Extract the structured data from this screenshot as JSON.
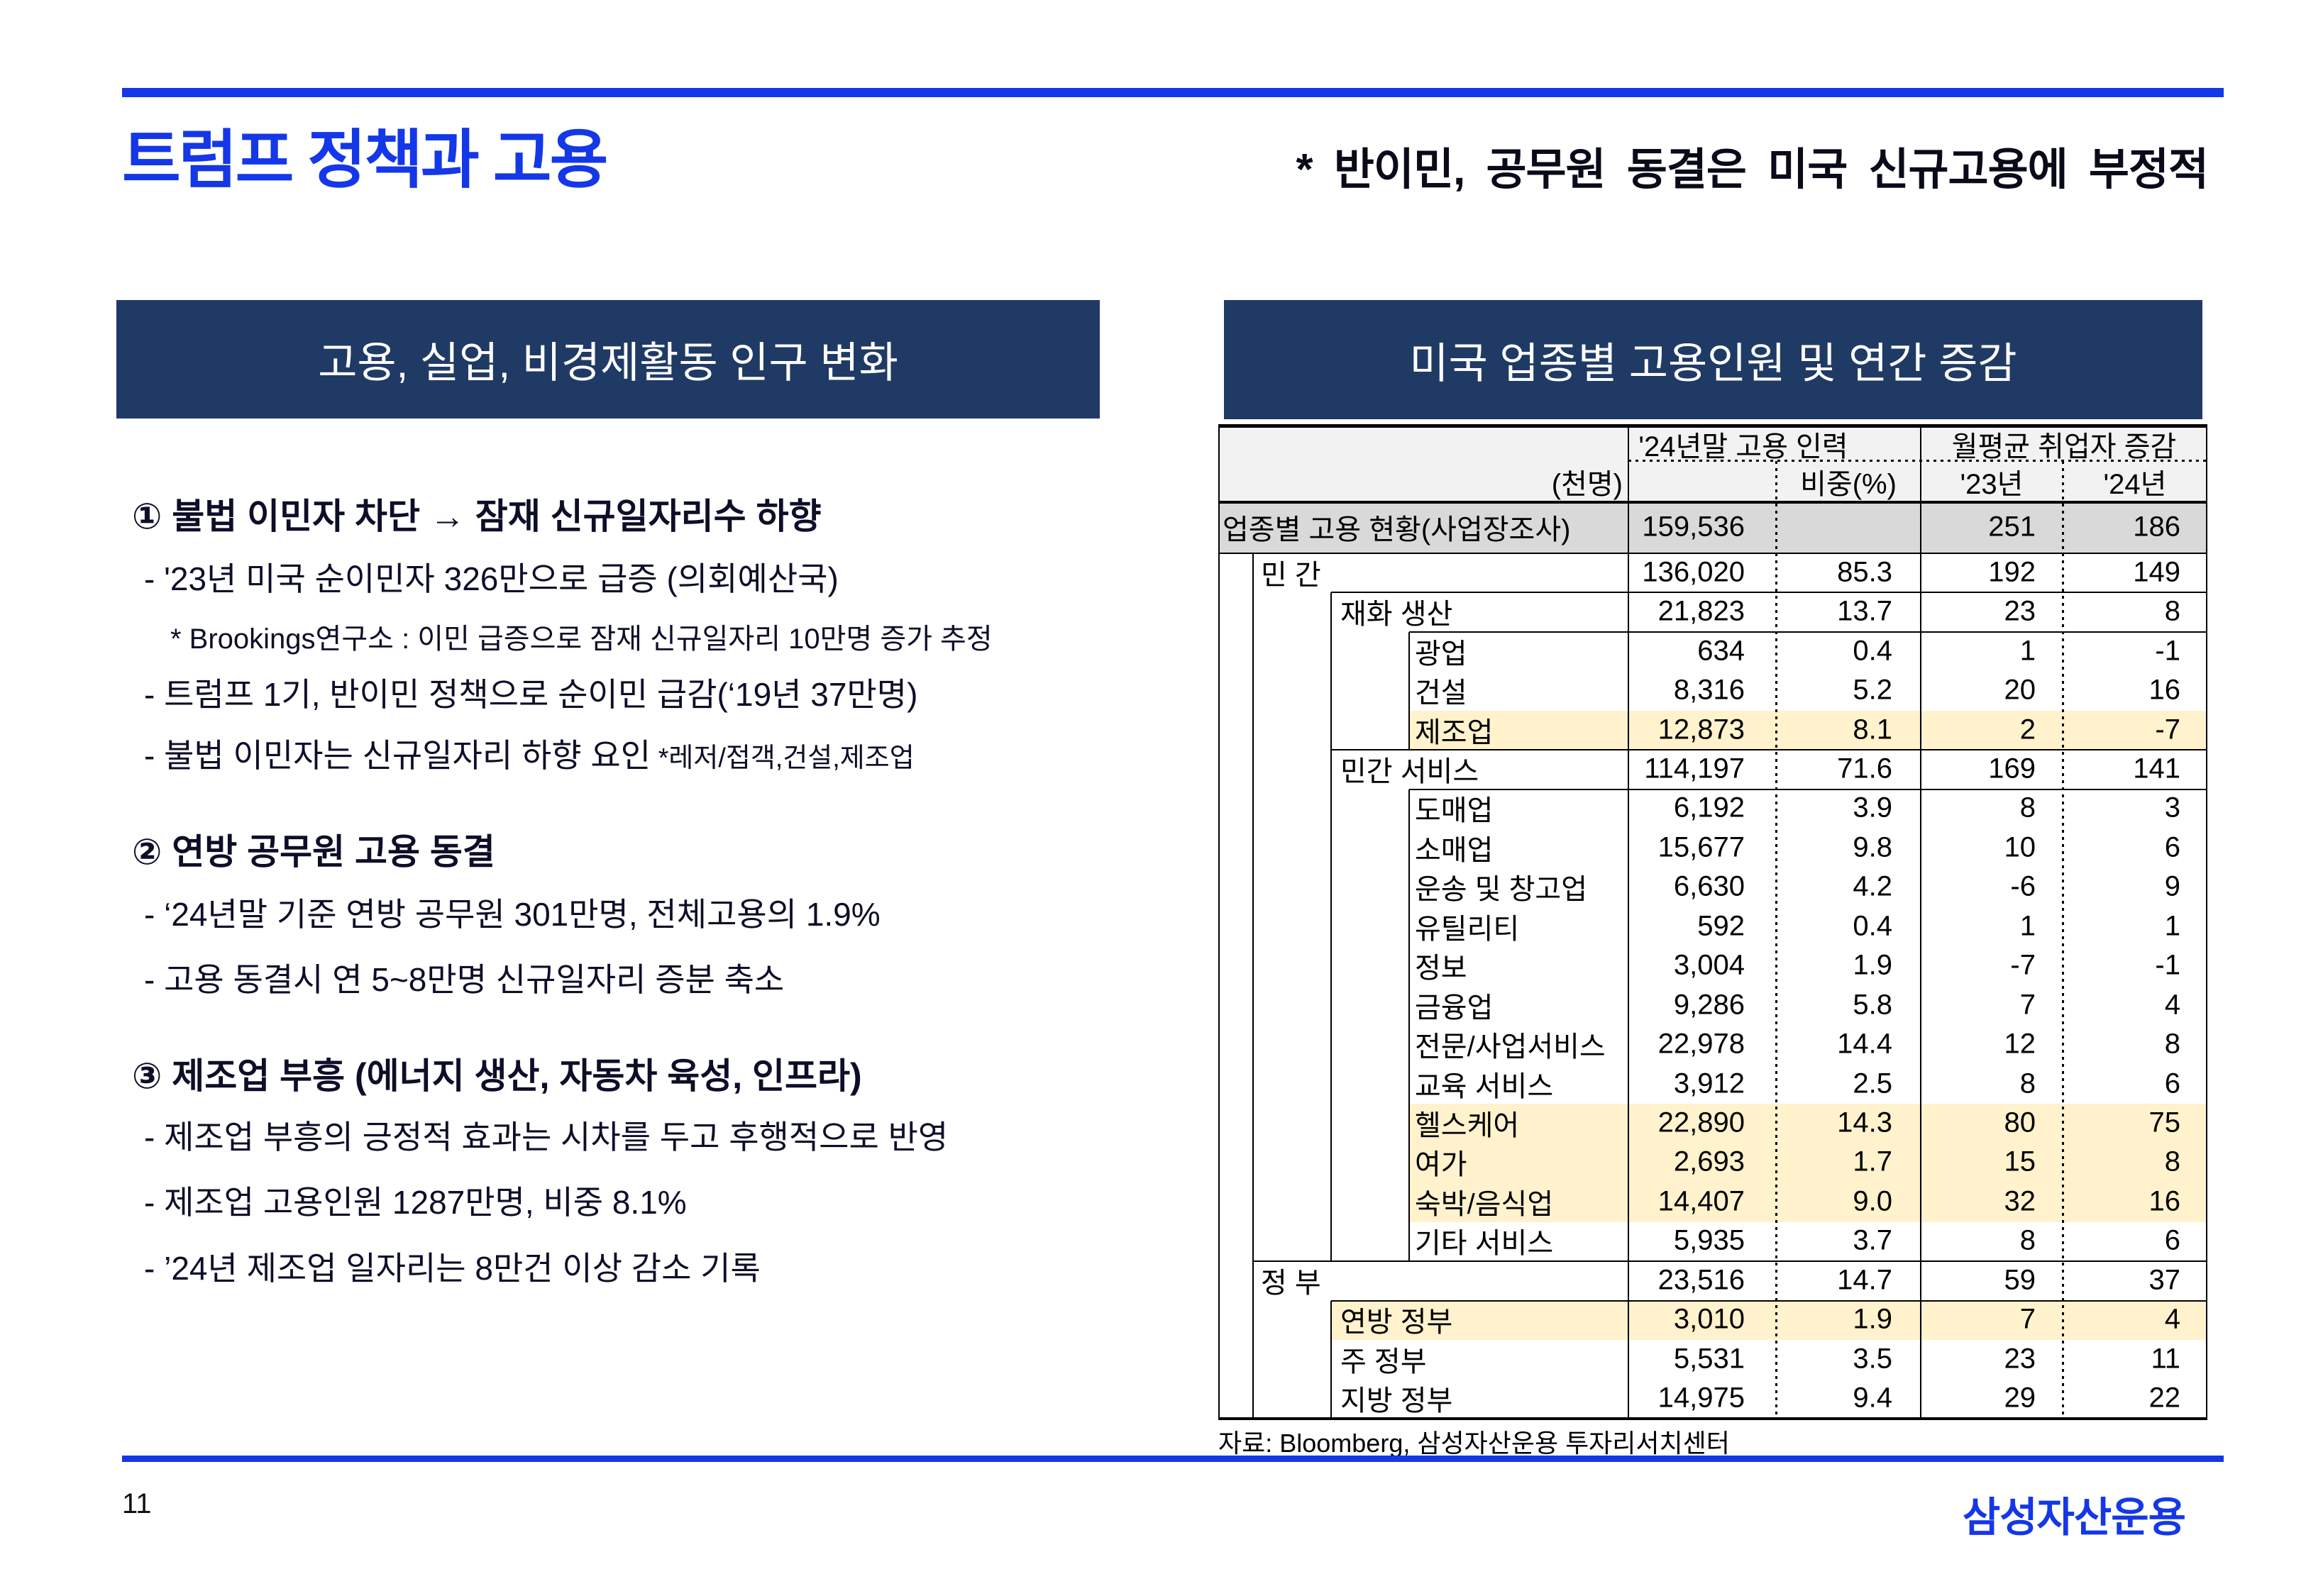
{
  "title": "트럼프 정책과 고용",
  "subtitle": "* 반이민, 공무원 동결은 미국 신규고용에 부정적",
  "page_number": "11",
  "logo": "삼성자산운용",
  "colors": {
    "accent_blue": "#1437E8",
    "navy": "#203A66",
    "highlight_yellow": "#FFF2CC",
    "row_gray": "#D9D9D9",
    "header_gray": "#F2F2F2"
  },
  "left_panel": {
    "header": "고용, 실업, 비경제활동 인구 변화",
    "sections": [
      {
        "heading": "① 불법 이민자 차단 → 잠재 신규일자리수 하향",
        "bullets": [
          {
            "text": "- '23년 미국 순이민자 326만으로 급증 (의회예산국)"
          },
          {
            "text": "* Brookings연구소 : 이민 급증으로 잠재 신규일자리 10만명 증가 추정",
            "style": "note"
          },
          {
            "text": "- 트럼프 1기, 반이민 정책으로 순이민 급감(‘19년 37만명)"
          },
          {
            "text": "- 불법 이민자는 신규일자리 하향 요인",
            "suffix": "  *레저/접객,건설,제조업"
          }
        ]
      },
      {
        "heading": "② 연방 공무원 고용 동결",
        "bullets": [
          {
            "text": "- ‘24년말 기준 연방 공무원 301만명, 전체고용의 1.9%"
          },
          {
            "text": "- 고용 동결시 연 5~8만명 신규일자리 증분 축소"
          }
        ]
      },
      {
        "heading": "③ 제조업 부흥 (에너지 생산, 자동차 육성, 인프라)",
        "bullets": [
          {
            "text": "- 제조업 부흥의 긍정적 효과는 시차를 두고 후행적으로 반영"
          },
          {
            "text": "- 제조업 고용인원 1287만명, 비중 8.1%"
          },
          {
            "text": "- ’24년 제조업 일자리는 8만건 이상 감소 기록"
          }
        ]
      }
    ]
  },
  "right_panel": {
    "header": "미국 업종별 고용인원 및 연간 증감",
    "source": "자료: Bloomberg, 삼성자산운용 투자리서치센터",
    "table": {
      "group_headers": [
        "'24년말 고용 인력",
        "월평균 취업자 증감"
      ],
      "unit_label": "(천명)",
      "sub_headers": [
        "비중(%)",
        "'23년",
        "'24년"
      ],
      "rows": [
        {
          "label": "업종별 고용 현황(사업장조사)",
          "level": 0,
          "values": [
            "159,536",
            "",
            "251",
            "186"
          ],
          "bg": "gray"
        },
        {
          "label": "민  간",
          "level": 1,
          "values": [
            "136,020",
            "85.3",
            "192",
            "149"
          ]
        },
        {
          "label": "재화 생산",
          "level": 2,
          "values": [
            "21,823",
            "13.7",
            "23",
            "8"
          ]
        },
        {
          "label": "광업",
          "level": 3,
          "values": [
            "634",
            "0.4",
            "1",
            "-1"
          ]
        },
        {
          "label": "건설",
          "level": 3,
          "values": [
            "8,316",
            "5.2",
            "20",
            "16"
          ]
        },
        {
          "label": "제조업",
          "level": 3,
          "values": [
            "12,873",
            "8.1",
            "2",
            "-7"
          ],
          "bg": "yellow"
        },
        {
          "label": "민간 서비스",
          "level": 2,
          "values": [
            "114,197",
            "71.6",
            "169",
            "141"
          ]
        },
        {
          "label": "도매업",
          "level": 3,
          "values": [
            "6,192",
            "3.9",
            "8",
            "3"
          ]
        },
        {
          "label": "소매업",
          "level": 3,
          "values": [
            "15,677",
            "9.8",
            "10",
            "6"
          ]
        },
        {
          "label": "운송 및 창고업",
          "level": 3,
          "values": [
            "6,630",
            "4.2",
            "-6",
            "9"
          ]
        },
        {
          "label": "유틸리티",
          "level": 3,
          "values": [
            "592",
            "0.4",
            "1",
            "1"
          ]
        },
        {
          "label": "정보",
          "level": 3,
          "values": [
            "3,004",
            "1.9",
            "-7",
            "-1"
          ]
        },
        {
          "label": "금융업",
          "level": 3,
          "values": [
            "9,286",
            "5.8",
            "7",
            "4"
          ]
        },
        {
          "label": "전문/사업서비스",
          "level": 3,
          "values": [
            "22,978",
            "14.4",
            "12",
            "8"
          ]
        },
        {
          "label": "교육 서비스",
          "level": 3,
          "values": [
            "3,912",
            "2.5",
            "8",
            "6"
          ]
        },
        {
          "label": "헬스케어",
          "level": 3,
          "values": [
            "22,890",
            "14.3",
            "80",
            "75"
          ],
          "bg": "yellow"
        },
        {
          "label": "여가",
          "level": 3,
          "values": [
            "2,693",
            "1.7",
            "15",
            "8"
          ],
          "bg": "yellow"
        },
        {
          "label": "숙박/음식업",
          "level": 3,
          "values": [
            "14,407",
            "9.0",
            "32",
            "16"
          ],
          "bg": "yellow"
        },
        {
          "label": "기타 서비스",
          "level": 3,
          "values": [
            "5,935",
            "3.7",
            "8",
            "6"
          ]
        },
        {
          "label": "정  부",
          "level": 1,
          "values": [
            "23,516",
            "14.7",
            "59",
            "37"
          ]
        },
        {
          "label": "연방 정부",
          "level": 2,
          "values": [
            "3,010",
            "1.9",
            "7",
            "4"
          ],
          "bg": "yellow"
        },
        {
          "label": "주 정부",
          "level": 2,
          "values": [
            "5,531",
            "3.5",
            "23",
            "11"
          ]
        },
        {
          "label": "지방 정부",
          "level": 2,
          "values": [
            "14,975",
            "9.4",
            "29",
            "22"
          ]
        }
      ]
    }
  }
}
